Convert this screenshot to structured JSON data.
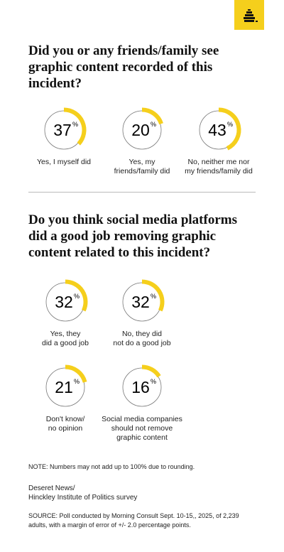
{
  "chart_data": [
    {
      "type": "donut",
      "title": "Did you or any friends/family see graphic content recorded of this incident?",
      "unit": "%",
      "color": "#f5cf1c",
      "categories": [
        "Yes, I myself did",
        "Yes, my\nfriends/family did",
        "No, neither me nor\nmy friends/family did"
      ],
      "values": [
        37,
        20,
        43
      ]
    },
    {
      "type": "donut",
      "title": "Do you think social media platforms did a good job removing graphic content related to this incident?",
      "unit": "%",
      "color": "#f5cf1c",
      "categories": [
        "Yes, they\ndid a good job",
        "No, they did\nnot do a good job",
        "Don't know/\nno opinion",
        "Social media companies\nshould not remove\ngraphic content"
      ],
      "values": [
        32,
        32,
        21,
        16
      ]
    }
  ],
  "note": "NOTE: Numbers may not add up to 100% due to rounding.",
  "credit": "Deseret News/\nHinckley Institute of Politics survey",
  "source": "SOURCE: Poll conducted by Morning Consult Sept. 10-15,, 2025, of 2,239 adults, with a margin of error of +/- 2.0 percentage points."
}
